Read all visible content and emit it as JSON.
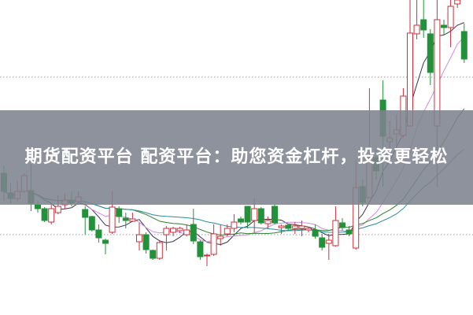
{
  "banner": {
    "title": "期货配资平台 配资平台：助您资金杠杆，投资更轻松"
  },
  "colors": {
    "up": "#c8323c",
    "down": "#23913a",
    "grid": "#9a9a9a",
    "banner": "#7d838e",
    "ma": [
      "#3a3550",
      "#d28be0",
      "#2f7f2f",
      "#2a8c98"
    ]
  },
  "chart_data": {
    "type": "candlestick",
    "grid": "horizontal-dotted",
    "candles_ohlc": [
      [
        180,
        157,
        190,
        145
      ],
      [
        155,
        148,
        168,
        142
      ],
      [
        148,
        157,
        170,
        145
      ],
      [
        157,
        177,
        180,
        155
      ],
      [
        158,
        142,
        192,
        132
      ],
      [
        140,
        135,
        145,
        130
      ],
      [
        135,
        120,
        137,
        118
      ],
      [
        118,
        135,
        142,
        115
      ],
      [
        130,
        138,
        152,
        128
      ],
      [
        140,
        146,
        155,
        135
      ],
      [
        146,
        142,
        157,
        138
      ],
      [
        144,
        150,
        157,
        142
      ],
      [
        134,
        124,
        138,
        102
      ],
      [
        125,
        108,
        126,
        106
      ],
      [
        108,
        98,
        115,
        92
      ],
      [
        95,
        91,
        97,
        77
      ],
      [
        105,
        137,
        157,
        103
      ],
      [
        135,
        125,
        138,
        117
      ],
      [
        123,
        120,
        130,
        110
      ],
      [
        119,
        122,
        130,
        118
      ],
      [
        93,
        102,
        117,
        82
      ],
      [
        102,
        83,
        105,
        78
      ],
      [
        82,
        72,
        83,
        70
      ],
      [
        72,
        92,
        95,
        70
      ],
      [
        102,
        110,
        113,
        82
      ],
      [
        105,
        110,
        112,
        100
      ],
      [
        107,
        110,
        112,
        104
      ],
      [
        102,
        108,
        115,
        100
      ],
      [
        115,
        94,
        135,
        90
      ],
      [
        93,
        74,
        95,
        70
      ],
      [
        75,
        76,
        78,
        62
      ],
      [
        77,
        103,
        115,
        75
      ],
      [
        97,
        100,
        115,
        88
      ],
      [
        103,
        110,
        115,
        100
      ],
      [
        110,
        118,
        128,
        105
      ],
      [
        122,
        118,
        125,
        115
      ],
      [
        138,
        118,
        138,
        110
      ],
      [
        120,
        135,
        148,
        105
      ],
      [
        135,
        117,
        137,
        115
      ],
      [
        116,
        120,
        125,
        110
      ],
      [
        138,
        117,
        140,
        115
      ],
      [
        111,
        113,
        115,
        103
      ],
      [
        114,
        110,
        116,
        108
      ],
      [
        110,
        113,
        118,
        103
      ],
      [
        110,
        113,
        120,
        100
      ],
      [
        108,
        110,
        112,
        105
      ],
      [
        108,
        100,
        115,
        97
      ],
      [
        98,
        86,
        103,
        82
      ],
      [
        91,
        95,
        103,
        70
      ],
      [
        88,
        120,
        138,
        87
      ],
      [
        117,
        111,
        123,
        107
      ],
      [
        108,
        103,
        113,
        100
      ],
      [
        85,
        162,
        197,
        83
      ],
      [
        163,
        143,
        172,
        138
      ],
      [
        149,
        198,
        288,
        148
      ],
      [
        200,
        183,
        210,
        172
      ],
      [
        273,
        227,
        298,
        163
      ],
      [
        220,
        225,
        247,
        200
      ],
      [
        230,
        235,
        255,
        195
      ],
      [
        228,
        278,
        288,
        225
      ],
      [
        240,
        358,
        400,
        240
      ],
      [
        357,
        368,
        400,
        350
      ],
      [
        375,
        362,
        400,
        352
      ],
      [
        357,
        308,
        363,
        292
      ],
      [
        240,
        375,
        400,
        163
      ],
      [
        368,
        365,
        375,
        355
      ],
      [
        365,
        392,
        400,
        340
      ],
      [
        395,
        400,
        400,
        390
      ],
      [
        360,
        325,
        370,
        320
      ]
    ]
  }
}
